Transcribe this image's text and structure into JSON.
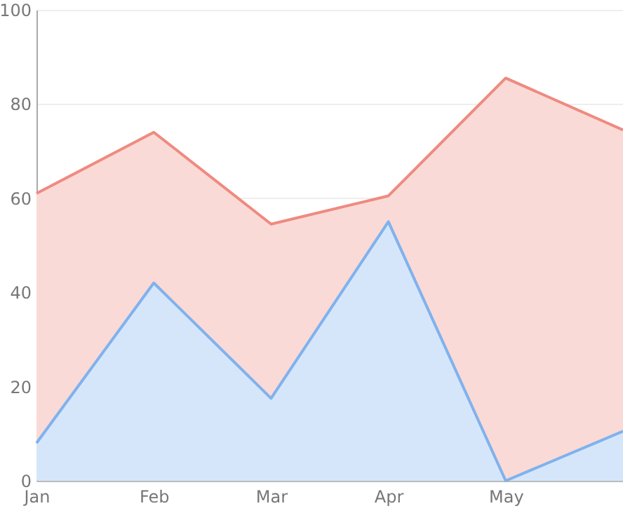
{
  "chart_data": {
    "type": "area",
    "categories": [
      "Jan",
      "Feb",
      "Mar",
      "Apr",
      "May",
      null
    ],
    "series": [
      {
        "color": "#ef8a80",
        "values": [
          61,
          74,
          54.5,
          60.5,
          85.5,
          74.5
        ]
      },
      {
        "color": "#7fb2ee",
        "values": [
          8,
          42,
          17.5,
          55,
          0,
          10.5
        ]
      }
    ],
    "ylim": [
      0,
      100
    ],
    "yticks": [
      0,
      20,
      40,
      60,
      80,
      100
    ],
    "grid": "y"
  }
}
